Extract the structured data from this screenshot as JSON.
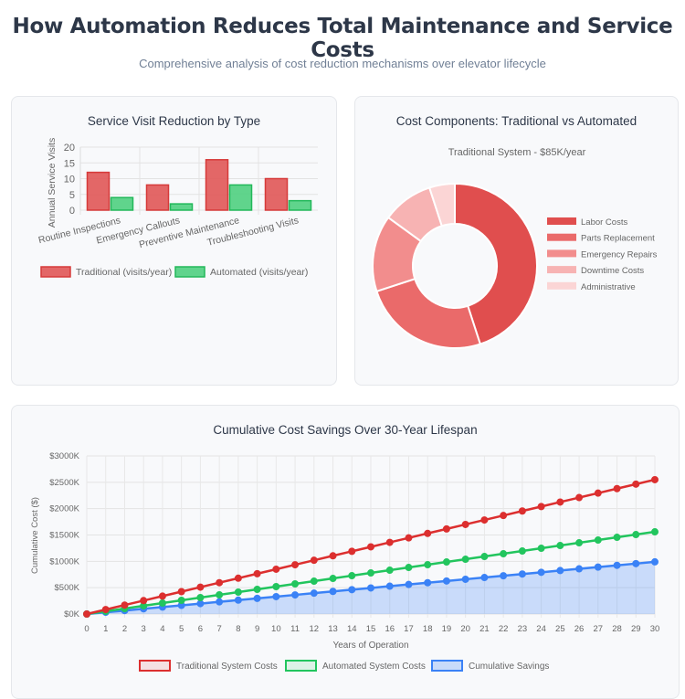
{
  "header": {
    "title": "How Automation Reduces Total Maintenance and Service Costs",
    "subtitle": "Comprehensive analysis of cost reduction mechanisms over elevator lifecycle"
  },
  "chart_data": [
    {
      "type": "bar",
      "title": "Service Visit Reduction by Type",
      "ylabel": "Annual Service Visits",
      "xlabel": "",
      "ylim": [
        0,
        20
      ],
      "yticks": [
        0,
        5,
        10,
        15,
        20
      ],
      "categories": [
        "Routine Inspections",
        "Emergency Callouts",
        "Preventive Maintenance",
        "Troubleshooting Visits"
      ],
      "series": [
        {
          "name": "Traditional (visits/year)",
          "values": [
            12,
            8,
            16,
            10
          ],
          "color": "#e05757"
        },
        {
          "name": "Automated (visits/year)",
          "values": [
            4,
            2,
            8,
            3
          ],
          "color": "#4fcf7f"
        }
      ],
      "legend": "bottom"
    },
    {
      "type": "pie",
      "title": "Cost Components: Traditional vs Automated",
      "subtitle": "Traditional System - $85K/year",
      "categories": [
        "Labor Costs",
        "Parts Replacement",
        "Emergency Repairs",
        "Downtime Costs",
        "Administrative"
      ],
      "values": [
        45,
        25,
        15,
        10,
        5
      ],
      "colors": [
        "#e04e4e",
        "#ea6a6a",
        "#f28d8d",
        "#f7b3b3",
        "#fbd5d5"
      ],
      "legend": "right"
    },
    {
      "type": "line",
      "title": "Cumulative Cost Savings Over 30-Year Lifespan",
      "xlabel": "Years of Operation",
      "ylabel": "Cumulative Cost ($)",
      "ylim": [
        0,
        3000
      ],
      "yticks": [
        "$0K",
        "$500K",
        "$1000K",
        "$1500K",
        "$2000K",
        "$2500K",
        "$3000K"
      ],
      "xlim": [
        0,
        30
      ],
      "x": [
        0,
        1,
        2,
        3,
        4,
        5,
        6,
        7,
        8,
        9,
        10,
        11,
        12,
        13,
        14,
        15,
        16,
        17,
        18,
        19,
        20,
        21,
        22,
        23,
        24,
        25,
        26,
        27,
        28,
        29,
        30
      ],
      "series": [
        {
          "name": "Traditional System Costs",
          "values": [
            0,
            85,
            170,
            255,
            340,
            425,
            510,
            595,
            680,
            765,
            850,
            935,
            1020,
            1105,
            1190,
            1275,
            1360,
            1445,
            1530,
            1615,
            1700,
            1785,
            1870,
            1955,
            2040,
            2125,
            2210,
            2295,
            2380,
            2465,
            2550
          ],
          "color": "#dc2f2f"
        },
        {
          "name": "Automated System Costs",
          "values": [
            0,
            52,
            104,
            156,
            208,
            260,
            312,
            364,
            416,
            468,
            520,
            572,
            624,
            676,
            728,
            780,
            832,
            884,
            936,
            988,
            1040,
            1092,
            1144,
            1196,
            1248,
            1300,
            1352,
            1404,
            1456,
            1508,
            1560
          ],
          "color": "#22c55e"
        },
        {
          "name": "Cumulative Savings",
          "values": [
            0,
            33,
            66,
            99,
            132,
            165,
            198,
            231,
            264,
            297,
            330,
            363,
            396,
            429,
            462,
            495,
            528,
            561,
            594,
            627,
            660,
            693,
            726,
            759,
            792,
            825,
            858,
            891,
            924,
            957,
            990
          ],
          "color": "#3b82f6",
          "fill": true
        }
      ],
      "legend": "bottom",
      "grid": true
    }
  ]
}
